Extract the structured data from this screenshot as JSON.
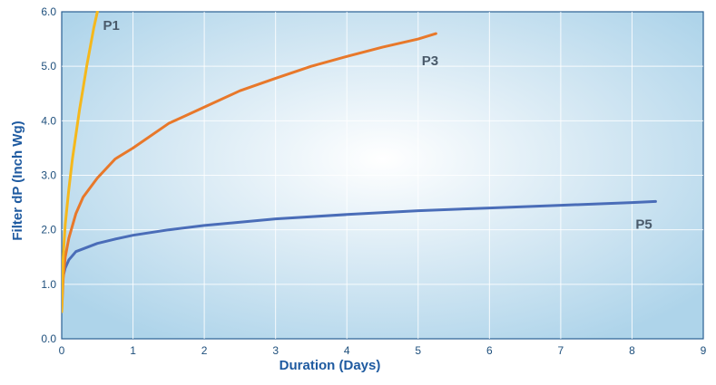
{
  "chart_data": {
    "type": "line",
    "xlabel": "Duration (Days)",
    "ylabel": "Filter dP (Inch Wg)",
    "xlim": [
      0,
      9
    ],
    "ylim": [
      0,
      6
    ],
    "x_ticks": [
      "0",
      "1",
      "2",
      "3",
      "4",
      "5",
      "6",
      "7",
      "8",
      "9"
    ],
    "y_ticks": [
      "0.0",
      "1.0",
      "2.0",
      "3.0",
      "4.0",
      "5.0",
      "6.0"
    ],
    "grid": true,
    "series": [
      {
        "name": "P1",
        "color": "#f5b81c",
        "x": [
          0.0,
          0.02,
          0.05,
          0.1,
          0.15,
          0.2,
          0.25,
          0.3,
          0.35,
          0.4,
          0.45,
          0.5
        ],
        "y": [
          0.5,
          1.5,
          2.1,
          2.75,
          3.3,
          3.75,
          4.2,
          4.6,
          5.0,
          5.35,
          5.7,
          6.0
        ]
      },
      {
        "name": "P3",
        "color": "#e8782a",
        "x": [
          0.0,
          0.02,
          0.05,
          0.1,
          0.2,
          0.3,
          0.5,
          0.75,
          1.0,
          1.5,
          2.0,
          2.5,
          3.0,
          3.5,
          4.0,
          4.5,
          5.0,
          5.25
        ],
        "y": [
          0.5,
          1.1,
          1.5,
          1.85,
          2.3,
          2.6,
          2.95,
          3.3,
          3.5,
          3.95,
          4.25,
          4.55,
          4.78,
          5.0,
          5.18,
          5.35,
          5.5,
          5.6
        ]
      },
      {
        "name": "P5",
        "color": "#4a6db8",
        "x": [
          0.0,
          0.02,
          0.05,
          0.1,
          0.2,
          0.3,
          0.5,
          0.75,
          1.0,
          1.5,
          2.0,
          3.0,
          4.0,
          5.0,
          6.0,
          7.0,
          8.0,
          8.33
        ],
        "y": [
          1.0,
          1.15,
          1.3,
          1.45,
          1.6,
          1.65,
          1.75,
          1.83,
          1.9,
          2.0,
          2.08,
          2.2,
          2.28,
          2.35,
          2.4,
          2.45,
          2.5,
          2.52
        ]
      }
    ],
    "series_labels": [
      {
        "name": "P1",
        "x": 0.58,
        "y": 5.75
      },
      {
        "name": "P3",
        "x": 5.05,
        "y": 5.1
      },
      {
        "name": "P5",
        "x": 8.05,
        "y": 2.1
      }
    ]
  }
}
